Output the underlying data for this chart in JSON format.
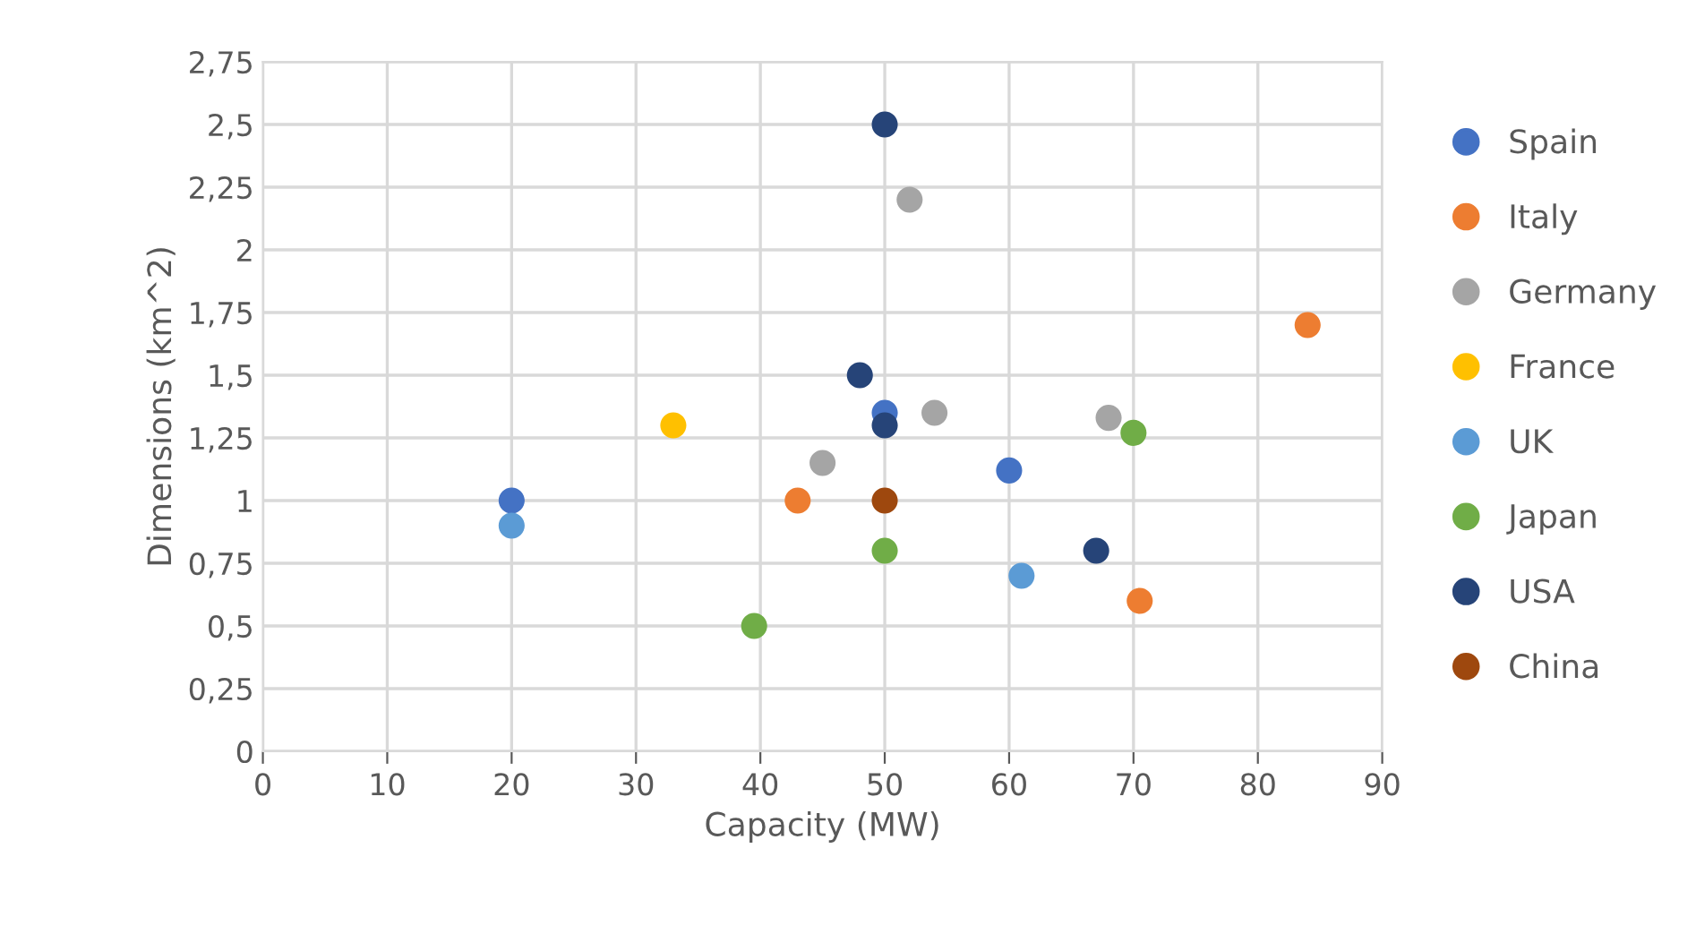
{
  "chart_data": {
    "type": "scatter",
    "xlabel": "Capacity (MW)",
    "ylabel": "Dimensions (km^2)",
    "xlim": [
      0,
      90
    ],
    "xticks": [
      0,
      10,
      20,
      30,
      40,
      50,
      60,
      70,
      80,
      90
    ],
    "ylim": [
      0,
      2.75
    ],
    "yticks": [
      0,
      {
        "value": 0.25,
        "label": "0,25"
      },
      {
        "value": 0.5,
        "label": "0,5"
      },
      {
        "value": 0.75,
        "label": "0,75"
      },
      1,
      {
        "value": 1.25,
        "label": "1,25"
      },
      {
        "value": 1.5,
        "label": "1,5"
      },
      {
        "value": 1.75,
        "label": "1,75"
      },
      2,
      {
        "value": 2.25,
        "label": "2,25"
      },
      {
        "value": 2.5,
        "label": "2,5"
      },
      {
        "value": 2.75,
        "label": "2,75"
      }
    ],
    "grid": true,
    "legend": "right",
    "marker": "circle",
    "series": [
      {
        "name": "Spain",
        "color": "#4472c4",
        "x": [
          20,
          50,
          60
        ],
        "values": [
          1.0,
          1.35,
          1.12
        ]
      },
      {
        "name": "Italy",
        "color": "#ed7d31",
        "x": [
          43,
          84,
          70.5
        ],
        "values": [
          1.0,
          1.7,
          0.6
        ]
      },
      {
        "name": "Germany",
        "color": "#a5a5a5",
        "x": [
          52,
          45,
          54,
          68
        ],
        "values": [
          2.2,
          1.15,
          1.35,
          1.33
        ]
      },
      {
        "name": "France",
        "color": "#ffc000",
        "x": [
          33
        ],
        "values": [
          1.3
        ]
      },
      {
        "name": "UK",
        "color": "#5b9bd5",
        "x": [
          20,
          61
        ],
        "values": [
          0.9,
          0.7
        ]
      },
      {
        "name": "Japan",
        "color": "#70ad47",
        "x": [
          39.5,
          50,
          70
        ],
        "values": [
          0.5,
          0.8,
          1.27
        ]
      },
      {
        "name": "USA",
        "color": "#264478",
        "x": [
          50,
          48,
          50,
          67
        ],
        "values": [
          2.5,
          1.5,
          1.3,
          0.8
        ]
      },
      {
        "name": "China",
        "color": "#9e480e",
        "x": [
          50
        ],
        "values": [
          1.0
        ]
      }
    ]
  }
}
